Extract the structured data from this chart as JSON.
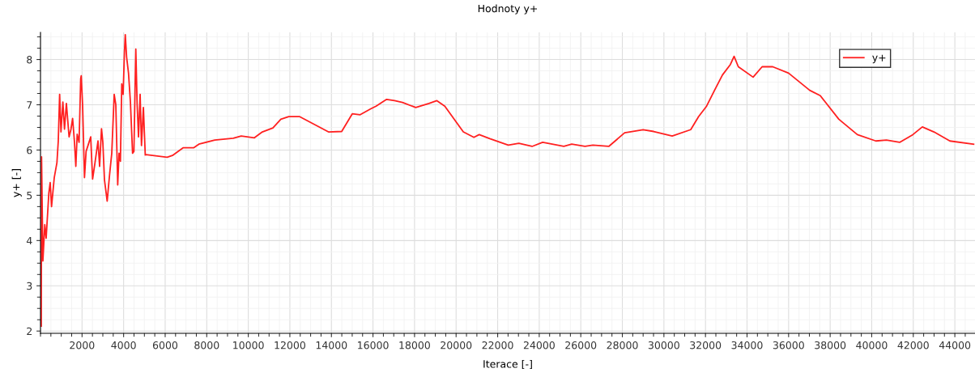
{
  "chart_data": {
    "type": "line",
    "title": "Hodnoty y+",
    "xlabel": "Iterace [-]",
    "ylabel": "y+ [-]",
    "xlim": [
      0,
      44970
    ],
    "ylim": [
      1.95,
      8.6
    ],
    "xticks": [
      2000,
      4000,
      6000,
      8000,
      10000,
      12000,
      14000,
      16000,
      18000,
      20000,
      22000,
      24000,
      26000,
      28000,
      30000,
      32000,
      34000,
      36000,
      38000,
      40000,
      42000,
      44000
    ],
    "yticks": [
      2,
      3,
      4,
      5,
      6,
      7,
      8
    ],
    "grid": true,
    "legend": "top right",
    "marker": "none",
    "line_style": "solid",
    "series": [
      {
        "name": "y+",
        "color": "#ff2020",
        "x": [
          38,
          51,
          116,
          207,
          272,
          402,
          467,
          532,
          662,
          791,
          856,
          921,
          986,
          1077,
          1155,
          1246,
          1376,
          1467,
          1545,
          1636,
          1701,
          1766,
          1857,
          1935,
          1961,
          2026,
          2117,
          2195,
          2286,
          2416,
          2507,
          2611,
          2767,
          2845,
          2936,
          3001,
          3079,
          3209,
          3326,
          3430,
          3547,
          3625,
          3716,
          3781,
          3846,
          3911,
          3976,
          4041,
          4080,
          4145,
          4236,
          4327,
          4431,
          4496,
          4587,
          4652,
          4717,
          4795,
          4860,
          4951,
          5042,
          5077,
          6095,
          6350,
          6859,
          7368,
          7622,
          8386,
          9276,
          9658,
          10294,
          10676,
          11185,
          11567,
          11949,
          12458,
          13857,
          14494,
          15003,
          15384,
          15893,
          16148,
          16657,
          17039,
          17420,
          18057,
          18693,
          19075,
          19456,
          20347,
          20856,
          21111,
          21620,
          22510,
          23019,
          23656,
          24165,
          25183,
          25564,
          26201,
          26583,
          27346,
          28110,
          28998,
          29509,
          30399,
          31291,
          31672,
          32054,
          32436,
          32818,
          33199,
          33377,
          33581,
          34293,
          34726,
          35236,
          35999,
          37017,
          37526,
          38417,
          39308,
          40198,
          40707,
          41343,
          41980,
          42435,
          42995,
          43761,
          44906
        ],
        "values": [
          2.11,
          5.85,
          3.55,
          4.35,
          4.05,
          5.05,
          5.28,
          4.75,
          5.39,
          5.72,
          6.2,
          7.23,
          6.4,
          7.06,
          6.46,
          7.03,
          6.29,
          6.46,
          6.7,
          6.17,
          5.64,
          6.35,
          6.17,
          7.58,
          7.64,
          7.0,
          5.39,
          5.97,
          6.1,
          6.29,
          5.36,
          5.68,
          6.2,
          5.64,
          6.47,
          6.17,
          5.34,
          4.87,
          5.46,
          5.93,
          7.23,
          7.0,
          5.23,
          5.93,
          5.75,
          7.46,
          7.23,
          8.17,
          8.55,
          8.05,
          7.7,
          7.06,
          5.93,
          5.97,
          8.23,
          7.0,
          6.29,
          7.23,
          6.1,
          6.94,
          5.89,
          5.9,
          5.84,
          5.88,
          6.05,
          6.05,
          6.13,
          6.22,
          6.26,
          6.31,
          6.27,
          6.4,
          6.49,
          6.68,
          6.74,
          6.74,
          6.4,
          6.41,
          6.8,
          6.78,
          6.91,
          6.97,
          7.12,
          7.09,
          7.05,
          6.94,
          7.03,
          7.09,
          6.97,
          6.4,
          6.28,
          6.34,
          6.25,
          6.11,
          6.15,
          6.08,
          6.17,
          6.08,
          6.13,
          6.08,
          6.11,
          6.08,
          6.38,
          6.45,
          6.41,
          6.31,
          6.45,
          6.74,
          6.97,
          7.32,
          7.66,
          7.89,
          8.07,
          7.84,
          7.61,
          7.84,
          7.84,
          7.7,
          7.32,
          7.2,
          6.68,
          6.34,
          6.2,
          6.22,
          6.17,
          6.34,
          6.51,
          6.4,
          6.2,
          6.13
        ]
      }
    ]
  }
}
